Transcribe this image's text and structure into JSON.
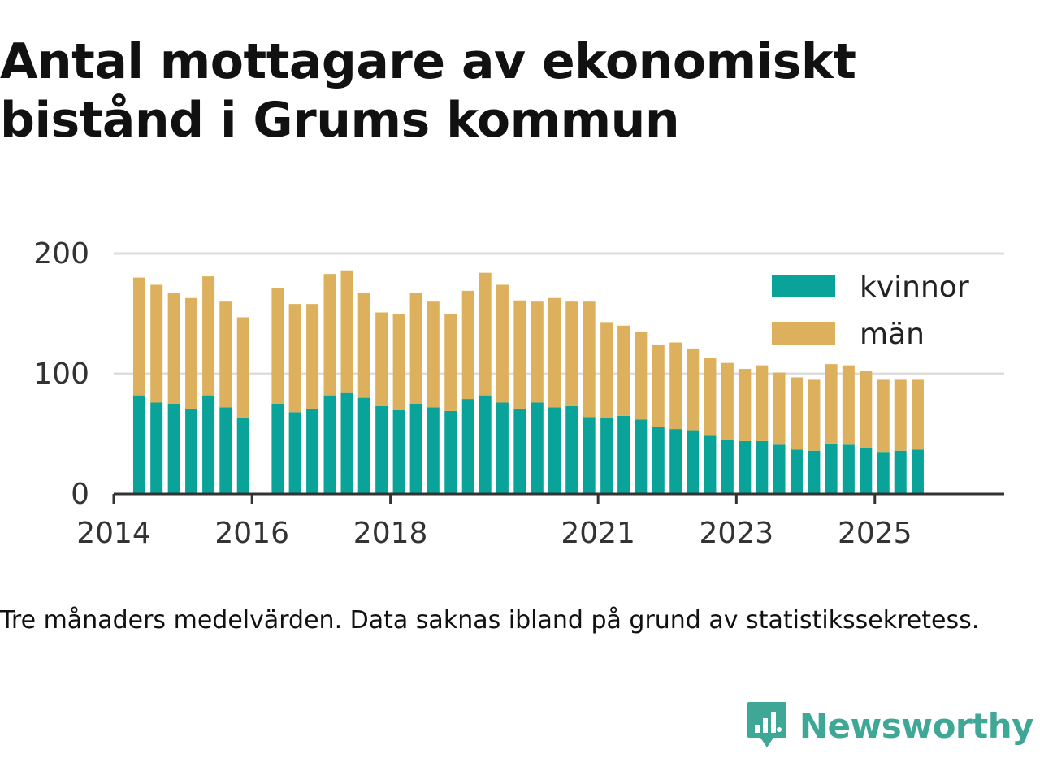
{
  "title": "Antal mottagare av ekonomiskt bistånd i Grums kommun",
  "caption": "Tre månaders medelvärden. Data saknas ibland på grund av statistikssekretess.",
  "brand": {
    "name": "Newsworthy",
    "icon": "newsworthy-logo-icon",
    "color": "#3fa796"
  },
  "colors": {
    "kvinnor": "#0aa39a",
    "man": "#dcb05d",
    "grid": "#dddddd",
    "axis": "#333333"
  },
  "chart_data": {
    "type": "bar",
    "stacked": true,
    "xlabel": "",
    "ylabel": "",
    "ylim": [
      0,
      200
    ],
    "yticks": [
      0,
      100,
      200
    ],
    "xticks": [
      "2014",
      "2016",
      "2018",
      "2021",
      "2023",
      "2025"
    ],
    "grid": true,
    "legend_position": "top-right",
    "x": [
      "2014-04",
      "2014-07",
      "2014-10",
      "2015-01",
      "2015-04",
      "2015-07",
      "2015-10",
      "2016-01",
      "2016-04",
      "2016-07",
      "2016-10",
      "2017-01",
      "2017-04",
      "2017-07",
      "2017-10",
      "2018-01",
      "2018-04",
      "2018-07",
      "2018-10",
      "2019-01",
      "2019-04",
      "2019-07",
      "2019-10",
      "2020-01",
      "2020-04",
      "2020-07",
      "2020-10",
      "2021-01",
      "2021-04",
      "2021-07",
      "2021-10",
      "2022-01",
      "2022-04",
      "2022-07",
      "2022-10",
      "2023-01",
      "2023-04",
      "2023-07",
      "2023-10",
      "2024-01",
      "2024-04",
      "2024-07",
      "2024-10",
      "2025-01",
      "2025-04",
      "2025-07"
    ],
    "series": [
      {
        "name": "kvinnor",
        "values": [
          82,
          76,
          75,
          71,
          82,
          72,
          63,
          null,
          75,
          68,
          71,
          82,
          84,
          80,
          73,
          70,
          75,
          72,
          69,
          79,
          82,
          76,
          71,
          76,
          72,
          73,
          64,
          63,
          65,
          62,
          56,
          54,
          53,
          49,
          45,
          44,
          44,
          41,
          37,
          36,
          42,
          41,
          38,
          35,
          36,
          37
        ]
      },
      {
        "name": "män",
        "values": [
          98,
          98,
          92,
          92,
          99,
          88,
          84,
          null,
          96,
          90,
          87,
          101,
          102,
          87,
          78,
          80,
          92,
          88,
          81,
          90,
          102,
          98,
          90,
          84,
          91,
          87,
          96,
          80,
          75,
          73,
          68,
          72,
          68,
          64,
          64,
          60,
          63,
          60,
          60,
          59,
          66,
          66,
          64,
          60,
          59,
          58
        ]
      }
    ]
  }
}
